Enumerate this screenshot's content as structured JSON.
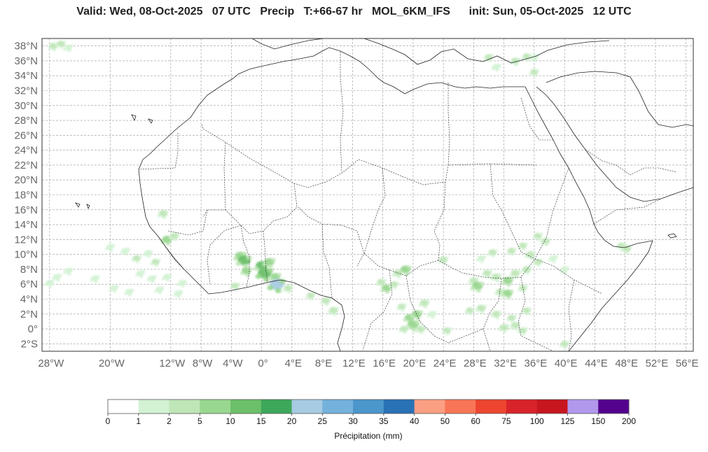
{
  "title": "Valid: Wed, 08-Oct-2025   07 UTC   Precip   T:+66-67 hr   MOL_6KM_IFS      init: Sun, 05-Oct-2025   12 UTC",
  "map": {
    "lat_labels": [
      "38°N",
      "36°N",
      "34°N",
      "32°N",
      "30°N",
      "28°N",
      "26°N",
      "24°N",
      "22°N",
      "20°N",
      "18°N",
      "16°N",
      "14°N",
      "12°N",
      "10°N",
      "8°N",
      "6°N",
      "4°N",
      "2°N",
      "0°",
      "2°S"
    ],
    "lon_labels": [
      "28°W",
      "20°W",
      "12°W",
      "8°W",
      "4°W",
      "0°",
      "4°E",
      "8°E",
      "12°E",
      "16°E",
      "20°E",
      "24°E",
      "28°E",
      "32°E",
      "36°E",
      "40°E",
      "44°E",
      "48°E",
      "52°E",
      "56°E"
    ],
    "lon_values": [
      -28,
      -20,
      -12,
      -8,
      -4,
      0,
      4,
      8,
      12,
      16,
      20,
      24,
      28,
      32,
      36,
      40,
      44,
      48,
      52,
      56
    ],
    "extent": {
      "lon_min": -29,
      "lon_max": 57,
      "lat_min": -3,
      "lat_max": 39
    },
    "grid": true,
    "frame_color": "#333333",
    "grid_color": "#999999",
    "coastline_color": "#222222",
    "precip_cells": [
      {
        "lon": -27.5,
        "lat": 38.0,
        "value": 3
      },
      {
        "lon": -26.5,
        "lat": 38.3,
        "value": 2
      },
      {
        "lon": -25.5,
        "lat": 37.8,
        "value": 1.5
      },
      {
        "lon": 30.0,
        "lat": 36.5,
        "value": 2
      },
      {
        "lon": 31.0,
        "lat": 35.2,
        "value": 1.5
      },
      {
        "lon": 33.5,
        "lat": 36.0,
        "value": 3
      },
      {
        "lon": 35.0,
        "lat": 36.6,
        "value": 2
      },
      {
        "lon": 36.0,
        "lat": 36.5,
        "value": 1.5
      },
      {
        "lon": 36.0,
        "lat": 34.5,
        "value": 2
      },
      {
        "lon": -13.0,
        "lat": 15.5,
        "value": 4
      },
      {
        "lon": -12.5,
        "lat": 12.0,
        "value": 6
      },
      {
        "lon": -11.5,
        "lat": 12.5,
        "value": 3
      },
      {
        "lon": -20.0,
        "lat": 11.0,
        "value": 1.5
      },
      {
        "lon": -18.0,
        "lat": 10.5,
        "value": 1.5
      },
      {
        "lon": -16.5,
        "lat": 9.5,
        "value": 2
      },
      {
        "lon": -15.0,
        "lat": 10.2,
        "value": 1.5
      },
      {
        "lon": -14.0,
        "lat": 9.0,
        "value": 2
      },
      {
        "lon": -16.0,
        "lat": 7.5,
        "value": 1.5
      },
      {
        "lon": -14.5,
        "lat": 6.8,
        "value": 1.5
      },
      {
        "lon": -12.5,
        "lat": 7.0,
        "value": 1.5
      },
      {
        "lon": -10.5,
        "lat": 6.2,
        "value": 1.5
      },
      {
        "lon": -13.5,
        "lat": 5.3,
        "value": 1.5
      },
      {
        "lon": -11.0,
        "lat": 4.8,
        "value": 1.5
      },
      {
        "lon": -25.5,
        "lat": 7.8,
        "value": 1.5
      },
      {
        "lon": -27.0,
        "lat": 7.0,
        "value": 1.5
      },
      {
        "lon": -28.0,
        "lat": 6.2,
        "value": 1.5
      },
      {
        "lon": -22.0,
        "lat": 6.8,
        "value": 1.5
      },
      {
        "lon": -19.5,
        "lat": 5.5,
        "value": 1.5
      },
      {
        "lon": -17.5,
        "lat": 5.0,
        "value": 1.5
      },
      {
        "lon": -2.8,
        "lat": 9.8,
        "value": 8
      },
      {
        "lon": -2.3,
        "lat": 9.2,
        "value": 12
      },
      {
        "lon": -2.0,
        "lat": 7.8,
        "value": 5
      },
      {
        "lon": 0.0,
        "lat": 8.5,
        "value": 10
      },
      {
        "lon": 0.4,
        "lat": 7.5,
        "value": 14
      },
      {
        "lon": 1.0,
        "lat": 9.0,
        "value": 7
      },
      {
        "lon": 1.8,
        "lat": 7.0,
        "value": 6
      },
      {
        "lon": 2.0,
        "lat": 6.0,
        "value": 22
      },
      {
        "lon": 3.5,
        "lat": 5.5,
        "value": 3
      },
      {
        "lon": -3.5,
        "lat": 5.8,
        "value": 2
      },
      {
        "lon": 6.5,
        "lat": 4.5,
        "value": 2
      },
      {
        "lon": 8.5,
        "lat": 3.8,
        "value": 3
      },
      {
        "lon": 9.5,
        "lat": 2.5,
        "value": 4
      },
      {
        "lon": 15.8,
        "lat": 6.3,
        "value": 3
      },
      {
        "lon": 16.5,
        "lat": 5.5,
        "value": 5
      },
      {
        "lon": 17.5,
        "lat": 6.0,
        "value": 2
      },
      {
        "lon": 18.0,
        "lat": 7.5,
        "value": 4
      },
      {
        "lon": 19.0,
        "lat": 8.0,
        "value": 6
      },
      {
        "lon": 18.5,
        "lat": 3.0,
        "value": 2
      },
      {
        "lon": 19.5,
        "lat": 1.5,
        "value": 5
      },
      {
        "lon": 20.0,
        "lat": 0.6,
        "value": 9
      },
      {
        "lon": 20.5,
        "lat": 2.0,
        "value": 6
      },
      {
        "lon": 21.5,
        "lat": 3.5,
        "value": 4
      },
      {
        "lon": 21.0,
        "lat": 0.0,
        "value": 3
      },
      {
        "lon": 18.8,
        "lat": 0.0,
        "value": 2
      },
      {
        "lon": 22.5,
        "lat": 2.0,
        "value": 1.5
      },
      {
        "lon": 24.5,
        "lat": -0.2,
        "value": 2
      },
      {
        "lon": 24.0,
        "lat": 9.3,
        "value": 3
      },
      {
        "lon": 29.0,
        "lat": 9.5,
        "value": 1.5
      },
      {
        "lon": 30.5,
        "lat": 10.3,
        "value": 2
      },
      {
        "lon": 28.0,
        "lat": 6.5,
        "value": 3
      },
      {
        "lon": 28.5,
        "lat": 5.8,
        "value": 8
      },
      {
        "lon": 29.8,
        "lat": 7.5,
        "value": 3
      },
      {
        "lon": 31.0,
        "lat": 7.0,
        "value": 4
      },
      {
        "lon": 32.5,
        "lat": 6.5,
        "value": 6
      },
      {
        "lon": 33.5,
        "lat": 7.5,
        "value": 4
      },
      {
        "lon": 31.5,
        "lat": 5.0,
        "value": 3
      },
      {
        "lon": 32.5,
        "lat": 4.8,
        "value": 5
      },
      {
        "lon": 34.5,
        "lat": 5.5,
        "value": 2
      },
      {
        "lon": 35.0,
        "lat": 8.0,
        "value": 3
      },
      {
        "lon": 33.0,
        "lat": 10.5,
        "value": 2
      },
      {
        "lon": 34.5,
        "lat": 11.2,
        "value": 2
      },
      {
        "lon": 35.5,
        "lat": 10.0,
        "value": 4
      },
      {
        "lon": 36.5,
        "lat": 9.0,
        "value": 2
      },
      {
        "lon": 37.5,
        "lat": 11.8,
        "value": 3
      },
      {
        "lon": 36.5,
        "lat": 12.5,
        "value": 2
      },
      {
        "lon": 38.5,
        "lat": 9.5,
        "value": 1.5
      },
      {
        "lon": 40.0,
        "lat": 8.0,
        "value": 1.5
      },
      {
        "lon": 27.5,
        "lat": 2.5,
        "value": 2
      },
      {
        "lon": 29.0,
        "lat": 2.8,
        "value": 4
      },
      {
        "lon": 31.0,
        "lat": 2.0,
        "value": 3
      },
      {
        "lon": 33.0,
        "lat": 1.5,
        "value": 2
      },
      {
        "lon": 32.0,
        "lat": 0.2,
        "value": 4
      },
      {
        "lon": 33.5,
        "lat": 0.5,
        "value": 3
      },
      {
        "lon": 35.0,
        "lat": 2.5,
        "value": 2
      },
      {
        "lon": 34.5,
        "lat": -0.2,
        "value": 2
      },
      {
        "lon": 48.2,
        "lat": 10.8,
        "value": 4
      },
      {
        "lon": 47.5,
        "lat": 11.2,
        "value": 2
      },
      {
        "lon": 40.0,
        "lat": -2.0,
        "value": 2
      }
    ]
  },
  "colorbar": {
    "label": "Précipitation (mm)",
    "ticks": [
      "0",
      "1",
      "2",
      "5",
      "10",
      "15",
      "20",
      "25",
      "30",
      "35",
      "40",
      "50",
      "60",
      "75",
      "100",
      "125",
      "150",
      "200"
    ],
    "colors": [
      "#ffffff",
      "#d3f2d4",
      "#bfe6b7",
      "#98d78f",
      "#6cc06a",
      "#3ea85a",
      "#a6cbe3",
      "#74b2dc",
      "#4b96cb",
      "#2a72b6",
      "#fc9e82",
      "#f87657",
      "#ed4530",
      "#d9232a",
      "#c7161d",
      "#b198ed",
      "#54018e"
    ]
  }
}
